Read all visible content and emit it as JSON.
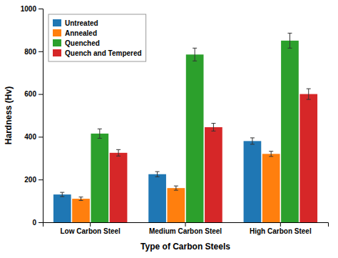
{
  "chart_data": {
    "type": "bar",
    "categories": [
      "Low Carbon Steel",
      "Medium Carbon Steel",
      "High Carbon Steel"
    ],
    "series": [
      {
        "name": "Untreated",
        "values": [
          130,
          225,
          380
        ],
        "errors": [
          10,
          12,
          15
        ]
      },
      {
        "name": "Annealed",
        "values": [
          110,
          160,
          320
        ],
        "errors": [
          8,
          10,
          12
        ]
      },
      {
        "name": "Quenched",
        "values": [
          415,
          785,
          850
        ],
        "errors": [
          22,
          30,
          35
        ]
      },
      {
        "name": "Quench and Tempered",
        "values": [
          325,
          445,
          600
        ],
        "errors": [
          15,
          18,
          25
        ]
      }
    ],
    "xlabel": "Type of Carbon Steels",
    "ylabel": "Hardness (Hv)",
    "ylim": [
      0,
      1000
    ],
    "yticks": [
      0,
      200,
      400,
      600,
      800,
      1000
    ],
    "grid": false,
    "legend": "upper left"
  }
}
